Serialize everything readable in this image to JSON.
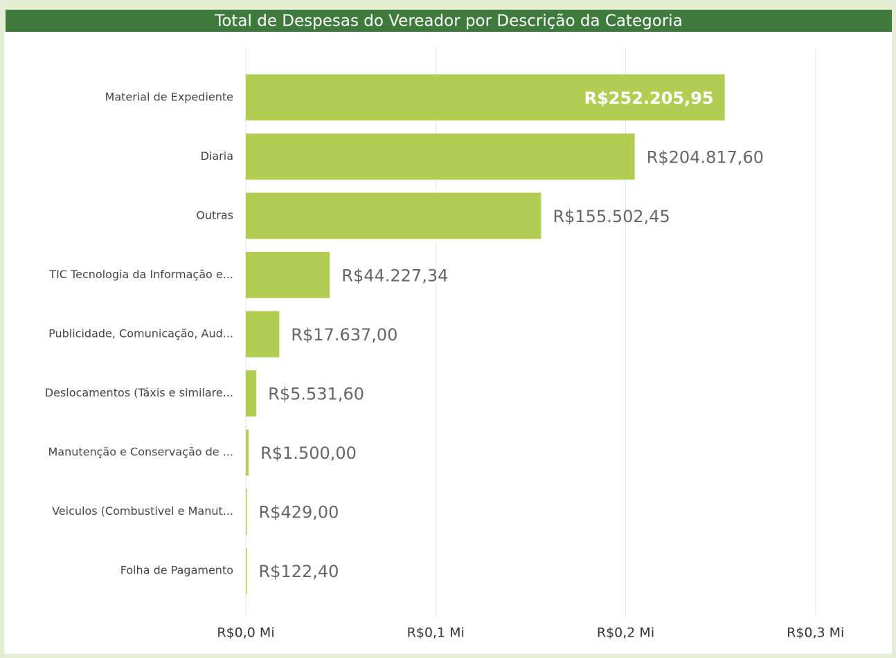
{
  "chart_data": {
    "type": "barh",
    "title": "Total de Despesas do Vereador por Descrição da Categoria",
    "categories": [
      "Material de Expediente",
      "Diaria",
      "Outras",
      "TIC Tecnologia da Informação e...",
      "Publicidade, Comunicação, Aud...",
      "Deslocamentos (Táxis e similare...",
      "Manutenção e Conservação de ...",
      "Veiculos (Combustivel e Manut...",
      "Folha de Pagamento"
    ],
    "values": [
      252205.95,
      204817.6,
      155502.45,
      44227.34,
      17637.0,
      5531.6,
      1500.0,
      429.0,
      122.4
    ],
    "value_labels": [
      "R$252.205,95",
      "R$204.817,60",
      "R$155.502,45",
      "R$44.227,34",
      "R$17.637,00",
      "R$5.531,60",
      "R$1.500,00",
      "R$429,00",
      "R$122,40"
    ],
    "color": "#b3cd52",
    "xlim": [
      0,
      330000
    ],
    "xticks": [
      {
        "value": 0,
        "label": "R$0,0 Mi"
      },
      {
        "value": 100000,
        "label": "R$0,1 Mi"
      },
      {
        "value": 200000,
        "label": "R$0,2 Mi"
      },
      {
        "value": 300000,
        "label": "R$0,3 Mi"
      }
    ],
    "grid": true
  }
}
